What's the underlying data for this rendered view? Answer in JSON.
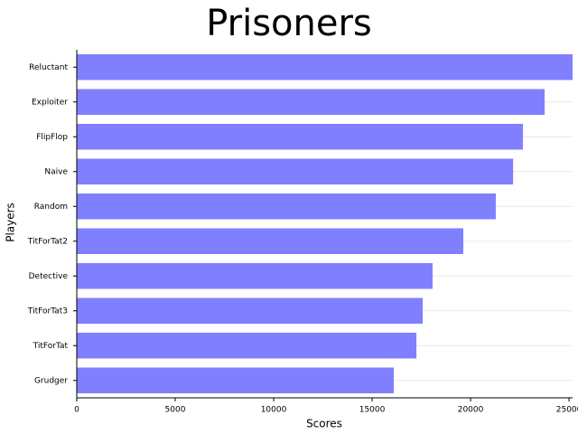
{
  "chart_data": {
    "type": "barh",
    "title": "Prisoners",
    "x_label": "Scores",
    "y_label": "Players",
    "categories": [
      "Reluctant",
      "Exploiter",
      "FlipFlop",
      "Naive",
      "Random",
      "TitForTat2",
      "Detective",
      "TitForTat3",
      "TitForTat",
      "Grudger"
    ],
    "values": [
      25180,
      23760,
      22660,
      22160,
      21280,
      19630,
      18070,
      17570,
      17250,
      16100
    ],
    "color": "#8080ff",
    "xlim": [
      0,
      25180
    ],
    "xticks": [
      0,
      5000,
      10000,
      15000,
      20000,
      25000
    ],
    "grid": true
  }
}
